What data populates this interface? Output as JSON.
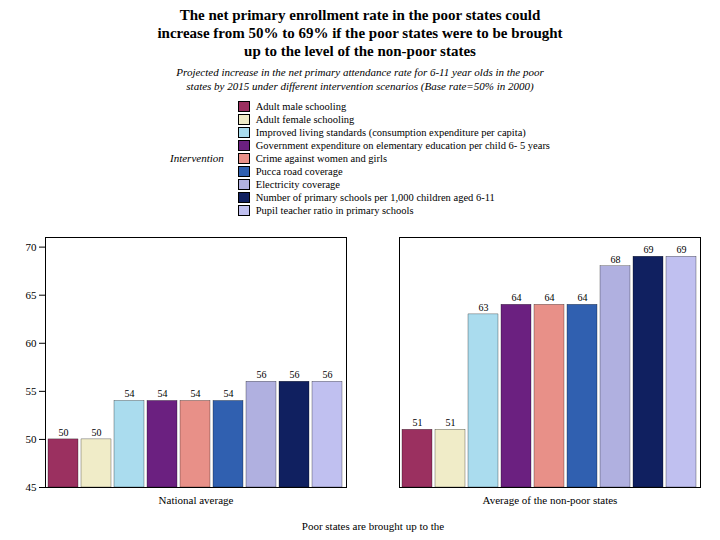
{
  "chart_data": {
    "type": "bar",
    "title": "The net primary enrollment rate in the poor states could\nincrease from 50% to 69% if the poor states were to be brought\nup to the level of the non-poor states",
    "subtitle": "Projected increase in the net primary attendance rate for 6-11 year olds in the poor\nstates by 2015 under different intervention scenarios (Base rate=50% in 2000)",
    "xlabel": "Poor states are brought up to the",
    "legend_title": "Intervention",
    "categories": [
      "National average",
      "Average of the non-poor states"
    ],
    "series": [
      {
        "name": "Adult male schooling",
        "color": "#9B3060",
        "values": [
          50,
          51
        ]
      },
      {
        "name": "Adult female schooling",
        "color": "#F0ECC8",
        "values": [
          50,
          51
        ]
      },
      {
        "name": "Improved living standards (consumption expenditure per capita)",
        "color": "#AADCEE",
        "values": [
          54,
          63
        ]
      },
      {
        "name": "Government expenditure on elementary education per child 6- 5 years",
        "color": "#6B2080",
        "values": [
          54,
          64
        ]
      },
      {
        "name": "Crime against women and girls",
        "color": "#E89088",
        "values": [
          54,
          64
        ]
      },
      {
        "name": "Pucca road coverage",
        "color": "#3060B0",
        "values": [
          54,
          64
        ]
      },
      {
        "name": "Electricity coverage",
        "color": "#B0B0E0",
        "values": [
          56,
          68
        ]
      },
      {
        "name": "Number of primary schools per 1,000 children aged 6-11",
        "color": "#102060",
        "values": [
          56,
          69
        ]
      },
      {
        "name": "Pupil teacher ratio in primary schools",
        "color": "#C0C0F0",
        "values": [
          56,
          69
        ]
      }
    ],
    "ylim": [
      45,
      71
    ],
    "yticks": [
      45,
      50,
      55,
      60,
      65,
      70
    ],
    "data_labels": true,
    "grid": false,
    "legend": "top"
  }
}
